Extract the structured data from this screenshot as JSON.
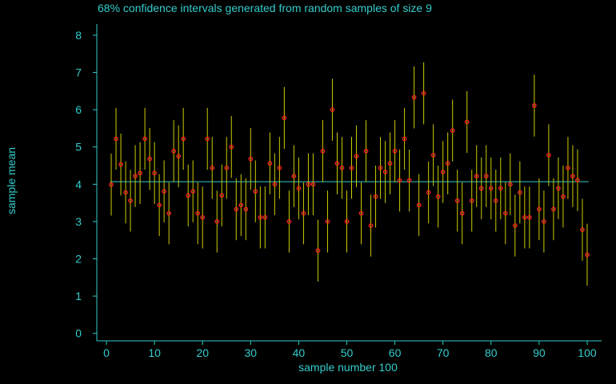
{
  "colors": {
    "background": "#000000",
    "axis": "#33cccc",
    "text": "#33cccc",
    "interval": "#cccc00",
    "point": "#ff2020",
    "mean_line": "#33cccc"
  },
  "chart_data": {
    "type": "scatter",
    "title": "68% confidence intervals generated from random samples of size 9",
    "xlabel": "sample number 100",
    "ylabel": "sample mean",
    "xlim": [
      -2,
      103
    ],
    "ylim": [
      -0.2,
      8.3
    ],
    "xticks": [
      0,
      10,
      20,
      30,
      40,
      50,
      60,
      70,
      80,
      90,
      100
    ],
    "yticks": [
      0,
      1,
      2,
      3,
      4,
      5,
      6,
      7,
      8
    ],
    "reference_line": 4.07,
    "interval_halfwidth": 0.83,
    "grid": false,
    "legend": "none",
    "x": [
      1,
      2,
      3,
      4,
      5,
      6,
      7,
      8,
      9,
      10,
      11,
      12,
      13,
      14,
      15,
      16,
      17,
      18,
      19,
      20,
      21,
      22,
      23,
      24,
      25,
      26,
      27,
      28,
      29,
      30,
      31,
      32,
      33,
      34,
      35,
      36,
      37,
      38,
      39,
      40,
      41,
      42,
      43,
      44,
      45,
      46,
      47,
      48,
      49,
      50,
      51,
      52,
      53,
      54,
      55,
      56,
      57,
      58,
      59,
      60,
      61,
      62,
      63,
      64,
      65,
      66,
      67,
      68,
      69,
      70,
      71,
      72,
      73,
      74,
      75,
      76,
      77,
      78,
      79,
      80,
      81,
      82,
      83,
      84,
      85,
      86,
      87,
      88,
      89,
      90,
      91,
      92,
      93,
      94,
      95,
      96,
      97,
      98,
      99,
      100
    ],
    "y": [
      3.99,
      5.22,
      4.53,
      3.78,
      3.56,
      4.22,
      4.3,
      5.22,
      4.68,
      4.3,
      3.44,
      3.81,
      3.22,
      4.89,
      4.75,
      5.22,
      3.7,
      3.81,
      3.22,
      3.11,
      5.22,
      4.44,
      3.0,
      3.7,
      4.44,
      5.0,
      3.33,
      3.44,
      3.33,
      4.68,
      3.81,
      3.11,
      3.11,
      4.56,
      4.0,
      4.44,
      5.78,
      3.0,
      4.22,
      3.89,
      3.22,
      4.0,
      4.0,
      2.22,
      4.89,
      3.0,
      6.0,
      4.56,
      4.44,
      3.0,
      4.44,
      4.75,
      3.22,
      4.89,
      2.89,
      3.67,
      4.44,
      4.33,
      4.56,
      4.89,
      4.1,
      5.22,
      4.1,
      6.33,
      3.44,
      6.44,
      3.78,
      4.78,
      3.67,
      4.33,
      4.56,
      5.44,
      3.56,
      3.22,
      5.67,
      3.56,
      4.22,
      3.89,
      4.22,
      3.89,
      3.56,
      3.89,
      3.22,
      4.0,
      2.89,
      3.78,
      3.11,
      3.11,
      6.11,
      3.33,
      3.0,
      4.78,
      3.33,
      3.89,
      3.67,
      4.44,
      4.22,
      4.11,
      2.78,
      2.11
    ]
  }
}
